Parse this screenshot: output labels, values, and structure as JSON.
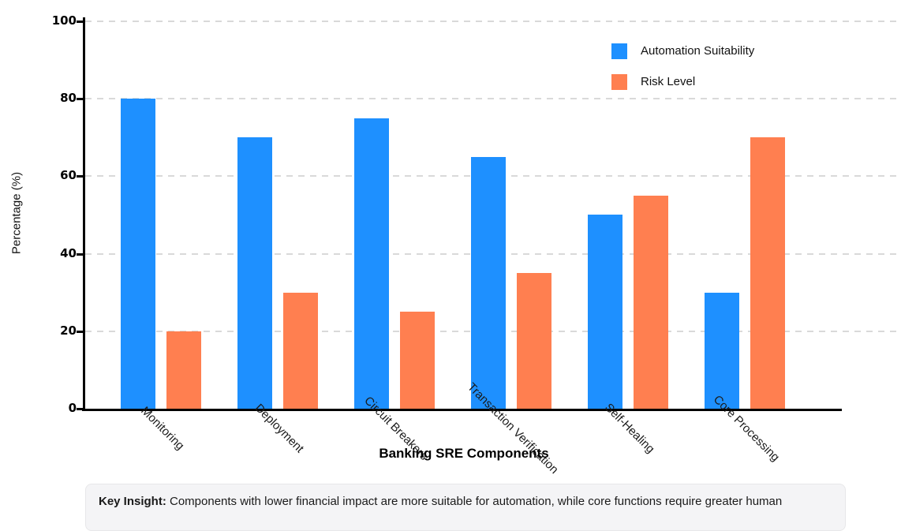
{
  "chart_data": {
    "type": "bar",
    "title": "",
    "categories": [
      "Monitoring",
      "Deployment",
      "Circuit Breakers",
      "Transaction Verification",
      "Self-Healing",
      "Core Processing"
    ],
    "series": [
      {
        "name": "Automation Suitability",
        "color": "#1E90FF",
        "values": [
          80,
          70,
          75,
          65,
          50,
          30
        ]
      },
      {
        "name": "Risk Level",
        "color": "#FF7F50",
        "values": [
          20,
          30,
          25,
          35,
          55,
          70
        ]
      }
    ],
    "xlabel": "Banking SRE Components",
    "ylabel": "Percentage (%)",
    "ylim": [
      0,
      100
    ],
    "yticks": [
      0,
      20,
      40,
      60,
      80,
      100
    ],
    "grid": "horizontal-dashed",
    "legend_position": "top-right"
  },
  "insight": {
    "label": "Key Insight:",
    "text": " Components with lower financial impact are more suitable for automation, while core functions require greater human"
  },
  "colors": {
    "automation_suitability": "#1E90FF",
    "risk_level": "#FF7F50",
    "axis": "#000000",
    "gridline": "#d9d9d9",
    "insight_background": "#f4f4f6"
  }
}
